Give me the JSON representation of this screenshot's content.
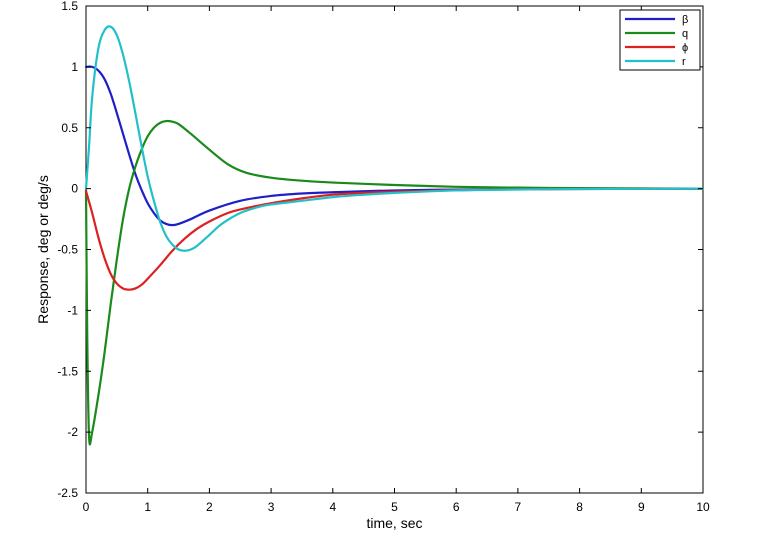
{
  "chart_data": {
    "type": "line",
    "title": "",
    "xlabel": "time, sec",
    "ylabel": "Response, deg or deg/s",
    "xlim": [
      0,
      10
    ],
    "ylim": [
      -2.5,
      1.5
    ],
    "xticks": [
      0,
      1,
      2,
      3,
      4,
      5,
      6,
      7,
      8,
      9,
      10
    ],
    "yticks": [
      -2.5,
      -2,
      -1.5,
      -1,
      -0.5,
      0,
      0.5,
      1,
      1.5
    ],
    "xtick_labels": [
      "0",
      "1",
      "2",
      "3",
      "4",
      "5",
      "6",
      "7",
      "8",
      "9",
      "10"
    ],
    "ytick_labels": [
      "-2.5",
      "-2",
      "-1.5",
      "-1",
      "-0.5",
      "0",
      "0.5",
      "1",
      "1.5"
    ],
    "grid": false,
    "legend_position": "top-right",
    "series": [
      {
        "name": "β",
        "color": "#1f1fc8",
        "x": [
          0,
          0.1,
          0.2,
          0.3,
          0.4,
          0.5,
          0.6,
          0.7,
          0.8,
          0.9,
          1.0,
          1.1,
          1.2,
          1.3,
          1.4,
          1.5,
          1.7,
          2.0,
          2.5,
          3.0,
          3.5,
          4.0,
          5.0,
          6.0,
          7.0,
          8.0,
          9.0,
          10.0
        ],
        "y": [
          1.0,
          1.0,
          0.97,
          0.9,
          0.78,
          0.62,
          0.45,
          0.28,
          0.12,
          -0.01,
          -0.12,
          -0.2,
          -0.26,
          -0.29,
          -0.3,
          -0.29,
          -0.25,
          -0.18,
          -0.1,
          -0.06,
          -0.04,
          -0.03,
          -0.015,
          -0.008,
          -0.004,
          -0.002,
          -0.001,
          0.0
        ]
      },
      {
        "name": "q",
        "color": "#1a8a1a",
        "x": [
          0,
          0.02,
          0.05,
          0.1,
          0.2,
          0.3,
          0.4,
          0.5,
          0.6,
          0.7,
          0.8,
          0.9,
          1.0,
          1.1,
          1.2,
          1.3,
          1.4,
          1.5,
          1.7,
          2.0,
          2.3,
          2.6,
          3.0,
          3.5,
          4.0,
          5.0,
          6.0,
          7.0,
          8.0,
          9.0,
          10.0
        ],
        "y": [
          0.0,
          -1.2,
          -2.04,
          -2.0,
          -1.7,
          -1.35,
          -0.95,
          -0.58,
          -0.25,
          0.0,
          0.18,
          0.32,
          0.43,
          0.5,
          0.54,
          0.555,
          0.55,
          0.53,
          0.45,
          0.32,
          0.2,
          0.13,
          0.09,
          0.065,
          0.05,
          0.03,
          0.015,
          0.008,
          0.004,
          0.002,
          0.0
        ]
      },
      {
        "name": "ϕ",
        "color": "#dd2020",
        "x": [
          0,
          0.1,
          0.2,
          0.3,
          0.4,
          0.5,
          0.6,
          0.7,
          0.8,
          0.9,
          1.0,
          1.2,
          1.4,
          1.6,
          1.8,
          2.0,
          2.3,
          2.6,
          3.0,
          3.5,
          4.0,
          4.5,
          5.0,
          6.0,
          7.0,
          8.0,
          9.0,
          10.0
        ],
        "y": [
          -0.02,
          -0.2,
          -0.4,
          -0.57,
          -0.7,
          -0.78,
          -0.82,
          -0.83,
          -0.82,
          -0.79,
          -0.74,
          -0.63,
          -0.51,
          -0.41,
          -0.33,
          -0.27,
          -0.2,
          -0.16,
          -0.12,
          -0.08,
          -0.05,
          -0.035,
          -0.025,
          -0.012,
          -0.006,
          -0.003,
          -0.0015,
          0.0
        ]
      },
      {
        "name": "r",
        "color": "#22c0c8",
        "x": [
          0,
          0.05,
          0.1,
          0.2,
          0.3,
          0.4,
          0.5,
          0.6,
          0.7,
          0.8,
          0.9,
          1.0,
          1.1,
          1.2,
          1.3,
          1.4,
          1.5,
          1.6,
          1.7,
          1.8,
          2.0,
          2.2,
          2.5,
          2.8,
          3.0,
          3.5,
          4.0,
          4.5,
          5.0,
          6.0,
          7.0,
          8.0,
          9.0,
          10.0
        ],
        "y": [
          0.0,
          0.35,
          0.75,
          1.15,
          1.3,
          1.33,
          1.26,
          1.1,
          0.88,
          0.62,
          0.35,
          0.1,
          -0.1,
          -0.27,
          -0.39,
          -0.46,
          -0.5,
          -0.51,
          -0.5,
          -0.47,
          -0.38,
          -0.29,
          -0.2,
          -0.15,
          -0.13,
          -0.1,
          -0.07,
          -0.05,
          -0.035,
          -0.015,
          -0.007,
          -0.003,
          -0.0015,
          0.0
        ]
      }
    ]
  }
}
